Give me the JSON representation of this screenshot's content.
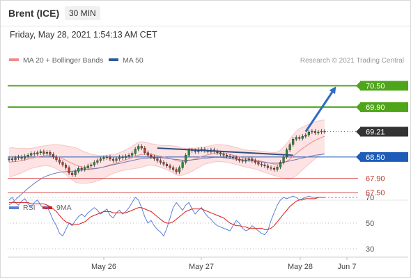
{
  "header": {
    "instrument": "Brent (ICE)",
    "timeframe": "30 MIN",
    "datetime": "Friday, May 28, 2021 1:54:13 AM CET"
  },
  "chart_data": {
    "type": "candlestick",
    "legend": [
      {
        "label": "MA 20 + Bollinger Bands",
        "color": "#f08a8a"
      },
      {
        "label": "MA 50",
        "color": "#2e5a94"
      }
    ],
    "copyright": "Research © 2021 Trading Central",
    "ylim": [
      67.0,
      70.8
    ],
    "x_ticks": [
      "May 26",
      "May 27",
      "May 28",
      "Jun 7"
    ],
    "levels": [
      {
        "value": 70.5,
        "label": "70.50",
        "style": "target",
        "color": "#4ea51a"
      },
      {
        "value": 69.9,
        "label": "69.90",
        "style": "target",
        "color": "#4ea51a"
      },
      {
        "value": 69.21,
        "label": "69.21",
        "style": "last",
        "color": "#333333"
      },
      {
        "value": 68.5,
        "label": "68.50",
        "style": "pivot",
        "color": "#1f5cb8"
      },
      {
        "value": 67.9,
        "label": "67.90",
        "style": "support",
        "color": "#d85050"
      },
      {
        "value": 67.5,
        "label": "67.50",
        "style": "support",
        "color": "#d85050"
      }
    ],
    "closes": [
      68.45,
      68.42,
      68.48,
      68.5,
      68.46,
      68.52,
      68.55,
      68.6,
      68.58,
      68.62,
      68.65,
      68.6,
      68.63,
      68.57,
      68.5,
      68.42,
      68.35,
      68.28,
      68.2,
      68.05,
      68.0,
      68.1,
      68.18,
      68.15,
      68.2,
      68.25,
      68.28,
      68.35,
      68.4,
      68.45,
      68.48,
      68.5,
      68.44,
      68.4,
      68.45,
      68.5,
      68.48,
      68.52,
      68.55,
      68.6,
      68.72,
      68.8,
      68.75,
      68.62,
      68.55,
      68.5,
      68.45,
      68.4,
      68.35,
      68.3,
      68.25,
      68.2,
      68.15,
      68.08,
      68.2,
      68.35,
      68.55,
      68.7,
      68.68,
      68.65,
      68.7,
      68.72,
      68.68,
      68.65,
      68.7,
      68.66,
      68.62,
      68.58,
      68.55,
      68.52,
      68.5,
      68.48,
      68.44,
      68.4,
      68.38,
      68.42,
      68.45,
      68.4,
      68.35,
      68.3,
      68.28,
      68.25,
      68.2,
      68.18,
      68.15,
      68.22,
      68.35,
      68.5,
      68.7,
      68.85,
      69.0,
      69.05,
      69.02,
      69.08,
      69.12,
      69.2,
      69.22,
      69.18,
      69.2,
      69.22,
      69.21
    ],
    "ma20": [
      68.35,
      68.36,
      68.37,
      68.38,
      68.4,
      68.42,
      68.44,
      68.46,
      68.48,
      68.5,
      68.52,
      68.53,
      68.54,
      68.54,
      68.53,
      68.51,
      68.48,
      68.45,
      68.41,
      68.36,
      68.32,
      68.28,
      68.25,
      68.22,
      68.2,
      68.19,
      68.18,
      68.18,
      68.19,
      68.2,
      68.22,
      68.25,
      68.28,
      68.3,
      68.33,
      68.36,
      68.39,
      68.42,
      68.45,
      68.48,
      68.52,
      68.55,
      68.57,
      68.58,
      68.58,
      68.57,
      68.56,
      68.54,
      68.52,
      68.5,
      68.48,
      68.46,
      68.43,
      68.4,
      68.38,
      68.37,
      68.38,
      68.4,
      68.42,
      68.45,
      68.48,
      68.51,
      68.54,
      68.56,
      68.58,
      68.6,
      68.61,
      68.61,
      68.6,
      68.59,
      68.57,
      68.55,
      68.53,
      68.5,
      68.48,
      68.46,
      68.44,
      68.43,
      68.42,
      68.4,
      68.38,
      68.36,
      68.34,
      68.32,
      68.3,
      68.3,
      68.31,
      68.34,
      68.38,
      68.44,
      68.52,
      68.6,
      68.67,
      68.74,
      68.8,
      68.86,
      68.92,
      68.97,
      69.01,
      69.05,
      69.08
    ],
    "bb_width": [
      0.4,
      0.4,
      0.38,
      0.36,
      0.34,
      0.32,
      0.3,
      0.28,
      0.28,
      0.28,
      0.28,
      0.28,
      0.28,
      0.3,
      0.32,
      0.34,
      0.36,
      0.38,
      0.4,
      0.44,
      0.46,
      0.48,
      0.48,
      0.46,
      0.44,
      0.42,
      0.4,
      0.38,
      0.36,
      0.34,
      0.32,
      0.3,
      0.28,
      0.26,
      0.26,
      0.26,
      0.27,
      0.28,
      0.3,
      0.32,
      0.34,
      0.36,
      0.36,
      0.34,
      0.32,
      0.3,
      0.3,
      0.3,
      0.31,
      0.32,
      0.34,
      0.36,
      0.38,
      0.4,
      0.4,
      0.38,
      0.36,
      0.34,
      0.32,
      0.3,
      0.28,
      0.26,
      0.24,
      0.24,
      0.24,
      0.24,
      0.24,
      0.24,
      0.24,
      0.24,
      0.24,
      0.24,
      0.24,
      0.24,
      0.24,
      0.24,
      0.24,
      0.25,
      0.26,
      0.27,
      0.28,
      0.29,
      0.3,
      0.31,
      0.32,
      0.34,
      0.38,
      0.44,
      0.5,
      0.56,
      0.6,
      0.62,
      0.62,
      0.6,
      0.58,
      0.56,
      0.54,
      0.52,
      0.5,
      0.48,
      0.46
    ],
    "ma50": [
      67.15,
      67.22,
      67.3,
      67.38,
      67.46,
      67.54,
      67.62,
      67.69,
      67.76,
      67.82,
      67.88,
      67.93,
      67.97,
      68.0,
      68.03,
      68.05,
      68.07,
      68.08,
      68.09,
      68.1,
      68.1,
      68.11,
      68.12,
      68.13,
      68.14,
      68.15,
      68.16,
      68.17,
      68.18,
      68.2,
      68.22,
      68.24,
      68.26,
      68.28,
      68.3,
      68.32,
      68.34,
      68.36,
      68.38,
      68.4,
      68.42,
      68.44,
      68.45,
      68.46,
      68.47,
      68.48,
      68.48,
      68.48,
      68.48,
      68.47,
      68.46,
      68.45,
      68.44,
      68.43,
      68.42,
      68.41,
      68.41,
      68.41,
      68.42,
      68.43,
      68.44,
      68.45,
      68.46,
      68.47,
      68.48,
      68.49,
      68.49,
      68.49,
      68.48,
      68.47,
      68.46,
      68.45,
      68.44,
      68.43,
      68.42,
      68.41,
      68.4,
      68.39,
      68.38,
      68.37,
      68.36,
      68.35,
      68.34,
      68.33,
      68.33,
      68.33,
      68.34,
      68.35,
      68.37,
      68.39,
      68.41,
      68.43,
      68.45,
      68.47,
      68.49,
      68.51,
      68.53,
      68.55,
      68.56,
      68.57,
      68.58
    ],
    "trendlines": [
      {
        "from": [
          47,
          68.75
        ],
        "to": [
          90,
          68.55
        ],
        "color": "#2e4f7e"
      }
    ],
    "forecast_arrow": {
      "from": [
        94,
        69.21
      ],
      "to": [
        103,
        70.4
      ],
      "color": "#2e6cc0"
    },
    "rsi_panel": {
      "legend": [
        {
          "label": "RSI",
          "color": "#5b7fd6"
        },
        {
          "label": "9MA",
          "color": "#d81b1b"
        }
      ],
      "ylim": [
        25,
        80
      ],
      "levels": [
        70,
        50,
        30
      ],
      "rsi": [
        68,
        70,
        66,
        64,
        67,
        69,
        65,
        62,
        66,
        68,
        64,
        61,
        63,
        58,
        52,
        48,
        42,
        40,
        45,
        50,
        48,
        52,
        55,
        57,
        55,
        58,
        60,
        62,
        60,
        57,
        59,
        61,
        56,
        54,
        58,
        60,
        57,
        59,
        62,
        66,
        70,
        68,
        62,
        55,
        50,
        52,
        48,
        45,
        43,
        40,
        46,
        54,
        62,
        66,
        63,
        60,
        64,
        66,
        61,
        57,
        60,
        62,
        58,
        55,
        53,
        50,
        48,
        47,
        46,
        45,
        44,
        48,
        52,
        50,
        46,
        44,
        45,
        48,
        46,
        44,
        42,
        41,
        44,
        52,
        58,
        64,
        68,
        70,
        69,
        70,
        71,
        70,
        68,
        69,
        70,
        71,
        70,
        70,
        70,
        70,
        70
      ],
      "rsi_ma": [
        66,
        66,
        66,
        66,
        66,
        66,
        66,
        65,
        65,
        65,
        65,
        65,
        64,
        63,
        61,
        59,
        56,
        53,
        51,
        50,
        49,
        49,
        49,
        50,
        51,
        53,
        55,
        56,
        57,
        58,
        59,
        59,
        59,
        58,
        58,
        58,
        58,
        58,
        59,
        60,
        61,
        62,
        62,
        61,
        60,
        59,
        57,
        55,
        53,
        51,
        50,
        50,
        51,
        53,
        55,
        57,
        59,
        60,
        61,
        61,
        61,
        61,
        60,
        59,
        58,
        57,
        56,
        55,
        54,
        52,
        50,
        49,
        48,
        48,
        47,
        47,
        46,
        46,
        46,
        46,
        46,
        45,
        45,
        46,
        48,
        51,
        54,
        57,
        60,
        63,
        65,
        67,
        68,
        68,
        69,
        69,
        69,
        69,
        70,
        70,
        70
      ]
    }
  }
}
